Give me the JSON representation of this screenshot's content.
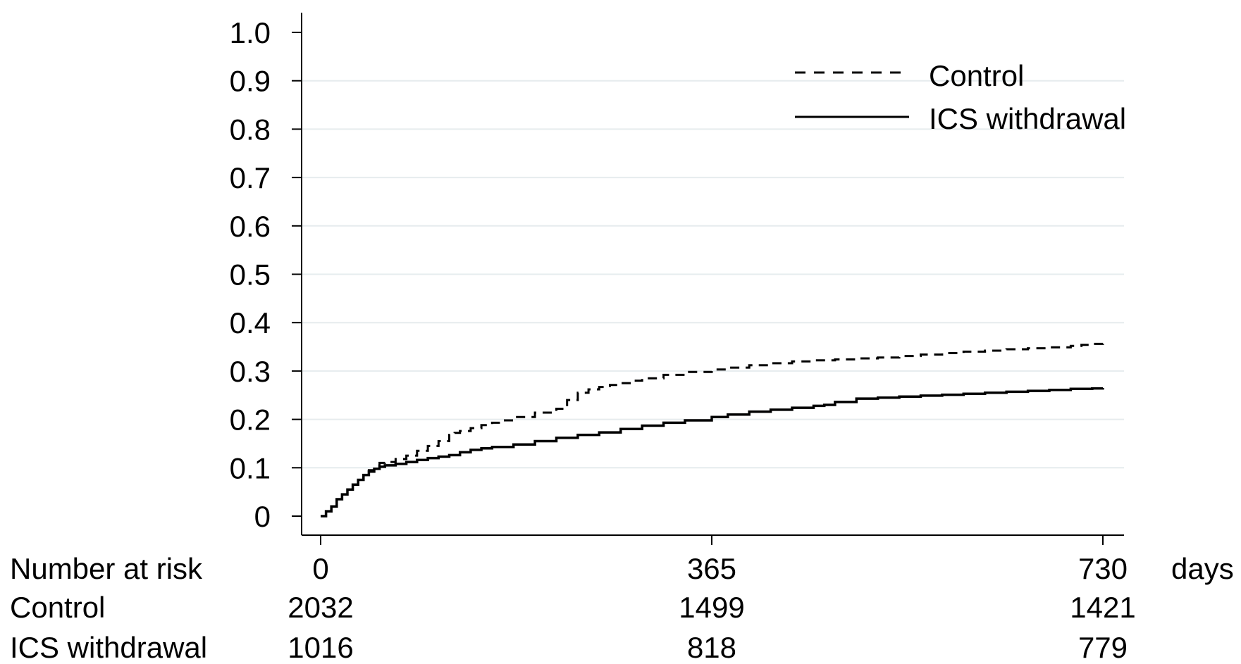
{
  "chart_data": {
    "type": "line",
    "title": "",
    "xlabel": "days",
    "ylabel": "",
    "xlim": [
      0,
      730
    ],
    "ylim": [
      0,
      1.0
    ],
    "x_ticks": [
      {
        "value": 0,
        "label": "0"
      },
      {
        "value": 365,
        "label": "365"
      },
      {
        "value": 730,
        "label": "730"
      }
    ],
    "y_ticks": [
      {
        "value": 0,
        "label": "0"
      },
      {
        "value": 0.1,
        "label": "0.1"
      },
      {
        "value": 0.2,
        "label": "0.2"
      },
      {
        "value": 0.3,
        "label": "0.3"
      },
      {
        "value": 0.4,
        "label": "0.4"
      },
      {
        "value": 0.5,
        "label": "0.5"
      },
      {
        "value": 0.6,
        "label": "0.6"
      },
      {
        "value": 0.7,
        "label": "0.7"
      },
      {
        "value": 0.8,
        "label": "0.8"
      },
      {
        "value": 0.9,
        "label": "0.9"
      },
      {
        "value": 1.0,
        "label": "1.0"
      }
    ],
    "grid": true,
    "legend_position": "top-right",
    "series": [
      {
        "name": "Control",
        "style": "dashed",
        "color": "#000000",
        "x": [
          0,
          5,
          10,
          15,
          20,
          25,
          30,
          35,
          40,
          45,
          50,
          55,
          60,
          70,
          80,
          90,
          100,
          110,
          120,
          125,
          130,
          140,
          150,
          160,
          170,
          180,
          200,
          220,
          230,
          240,
          250,
          260,
          270,
          280,
          290,
          300,
          320,
          340,
          365,
          380,
          400,
          420,
          440,
          460,
          480,
          500,
          520,
          540,
          560,
          580,
          600,
          620,
          640,
          660,
          680,
          700,
          710,
          720,
          730
        ],
        "y": [
          0,
          0.01,
          0.02,
          0.035,
          0.045,
          0.055,
          0.065,
          0.075,
          0.085,
          0.095,
          0.105,
          0.11,
          0.112,
          0.118,
          0.125,
          0.135,
          0.145,
          0.155,
          0.168,
          0.172,
          0.176,
          0.182,
          0.188,
          0.193,
          0.198,
          0.205,
          0.214,
          0.222,
          0.24,
          0.255,
          0.262,
          0.267,
          0.271,
          0.275,
          0.28,
          0.285,
          0.292,
          0.298,
          0.303,
          0.307,
          0.312,
          0.316,
          0.32,
          0.322,
          0.324,
          0.326,
          0.328,
          0.331,
          0.334,
          0.337,
          0.34,
          0.342,
          0.345,
          0.347,
          0.349,
          0.352,
          0.354,
          0.356,
          0.358
        ]
      },
      {
        "name": "ICS withdrawal",
        "style": "solid",
        "color": "#000000",
        "x": [
          0,
          5,
          10,
          15,
          20,
          25,
          30,
          35,
          40,
          45,
          50,
          55,
          60,
          70,
          80,
          90,
          100,
          110,
          120,
          130,
          140,
          150,
          160,
          180,
          200,
          220,
          240,
          260,
          280,
          300,
          320,
          340,
          365,
          380,
          400,
          420,
          440,
          460,
          470,
          480,
          500,
          520,
          540,
          560,
          580,
          600,
          620,
          640,
          660,
          680,
          700,
          720,
          730
        ],
        "y": [
          0,
          0.01,
          0.02,
          0.035,
          0.045,
          0.055,
          0.065,
          0.075,
          0.085,
          0.092,
          0.098,
          0.102,
          0.105,
          0.108,
          0.112,
          0.116,
          0.12,
          0.123,
          0.126,
          0.132,
          0.137,
          0.14,
          0.143,
          0.148,
          0.155,
          0.162,
          0.168,
          0.173,
          0.18,
          0.187,
          0.193,
          0.198,
          0.205,
          0.21,
          0.216,
          0.22,
          0.224,
          0.228,
          0.23,
          0.236,
          0.243,
          0.245,
          0.247,
          0.249,
          0.251,
          0.253,
          0.255,
          0.257,
          0.259,
          0.261,
          0.263,
          0.264,
          0.265
        ]
      }
    ],
    "risk_table": {
      "header": "Number at risk",
      "rows": [
        {
          "label": "Control",
          "values": [
            "2032",
            "1499",
            "1421"
          ]
        },
        {
          "label": "ICS withdrawal",
          "values": [
            "1016",
            "818",
            "779"
          ]
        }
      ]
    }
  }
}
